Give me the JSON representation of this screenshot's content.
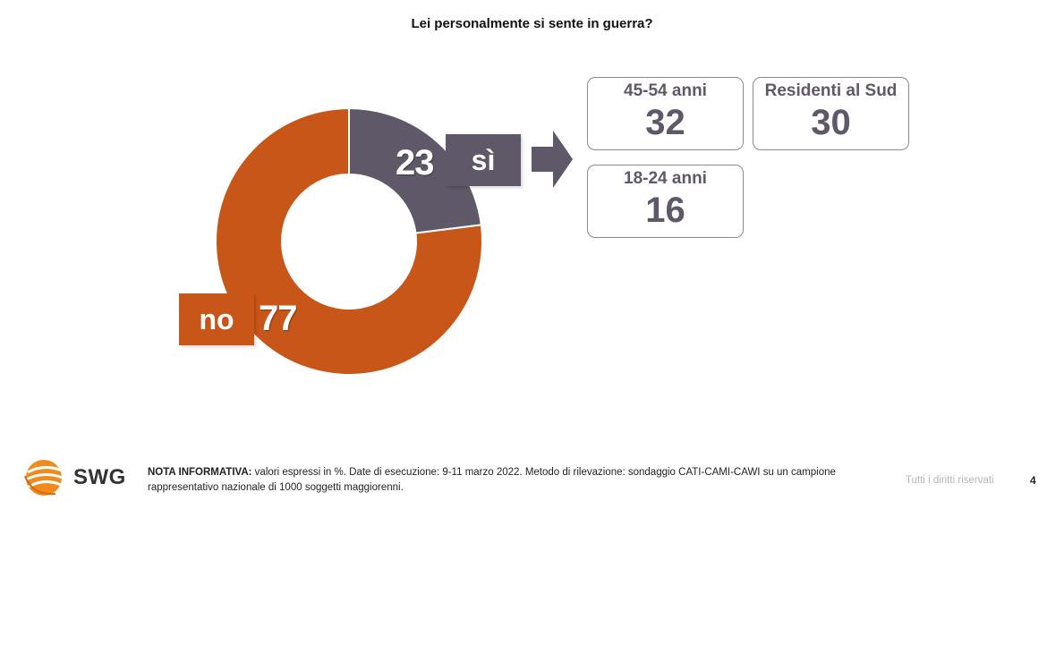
{
  "title": "Lei personalmente si sente in guerra?",
  "chart_data": {
    "type": "pie",
    "donut": true,
    "title": "Lei personalmente si sente in guerra?",
    "categories": [
      "sì",
      "no"
    ],
    "values": [
      23,
      77
    ],
    "colors": [
      "#5f5868",
      "#c75618"
    ]
  },
  "labels": {
    "si_value": "23",
    "si_tag": "sì",
    "no_value": "77",
    "no_tag": "no"
  },
  "breakdown": [
    {
      "label": "45-54 anni",
      "value": "32"
    },
    {
      "label": "Residenti al Sud",
      "value": "30"
    },
    {
      "label": "18-24 anni",
      "value": "16"
    }
  ],
  "footer": {
    "logo_text": "SWG",
    "note_label": "NOTA INFORMATIVA:",
    "note_text": " valori espressi in %. Date di esecuzione: 9-11 marzo 2022. Metodo di rilevazione: sondaggio CATI-CAMI-CAWI su un campione rappresentativo nazionale di 1000 soggetti maggiorenni.",
    "rights": "Tutti i diritti riservati",
    "page": "4"
  },
  "colors": {
    "accent_grey": "#5f5868",
    "accent_orange": "#c75618"
  }
}
